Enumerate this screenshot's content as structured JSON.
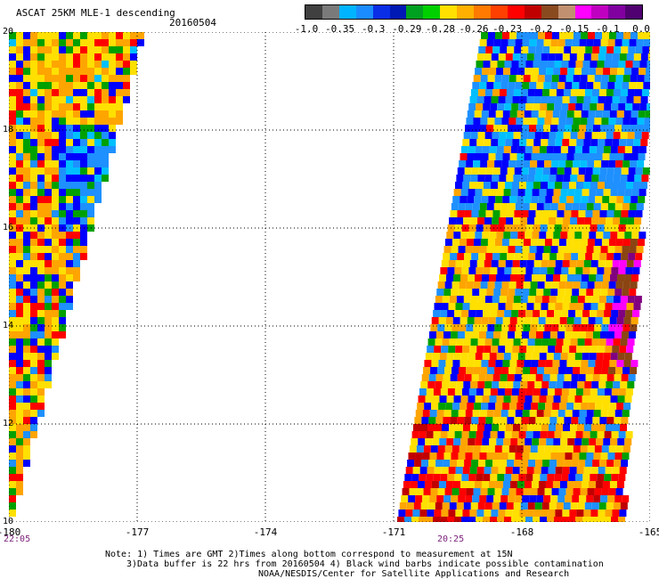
{
  "title": "ASCAT 25KM MLE-1 descending",
  "date": "20160504",
  "colorbar": {
    "labels": [
      "-1.0",
      "-0.35",
      "-0.3",
      "-0.29",
      "-0.28",
      "-0.26",
      "-0.23",
      "-0.2",
      "-0.15",
      "-0.1",
      "0.0"
    ],
    "colors": [
      "#404040",
      "#7a7a7a",
      "#00b4ff",
      "#1a8cff",
      "#0a2ee6",
      "#0018b4",
      "#00a020",
      "#00d000",
      "#ffe000",
      "#ffb000",
      "#ff7a00",
      "#ff4000",
      "#ff0000",
      "#c00000",
      "#8a4a20",
      "#c09070",
      "#ff00ff",
      "#c000c0",
      "#8000a0",
      "#500070"
    ]
  },
  "axes": {
    "x_ticks": [
      "-180",
      "-177",
      "-174",
      "-171",
      "-168",
      "-165"
    ],
    "y_ticks": [
      "20",
      "18",
      "16",
      "14",
      "12",
      "10"
    ],
    "xlim": [
      -180,
      -165
    ],
    "ylim": [
      10,
      20
    ]
  },
  "times": [
    "22:05",
    "20:25"
  ],
  "notes": [
    "Note: 1) Times are GMT 2)Times along bottom correspond to measurement at 15N",
    "3)Data buffer is 22 hrs from 20160504 4) Black wind barbs indicate possible contamination",
    "NOAA/NESDIS/Center for Satellite Applications and Research"
  ],
  "legend_colors": {
    "blue_light": "#1e90ff",
    "blue": "#0000ff",
    "cyan": "#00bfff",
    "green": "#00a000",
    "yellow": "#ffe000",
    "orange": "#ffa500",
    "red": "#ff0000",
    "darkred": "#c00000",
    "brown": "#8b4513",
    "magenta": "#ff00ff",
    "purple": "#800080"
  }
}
